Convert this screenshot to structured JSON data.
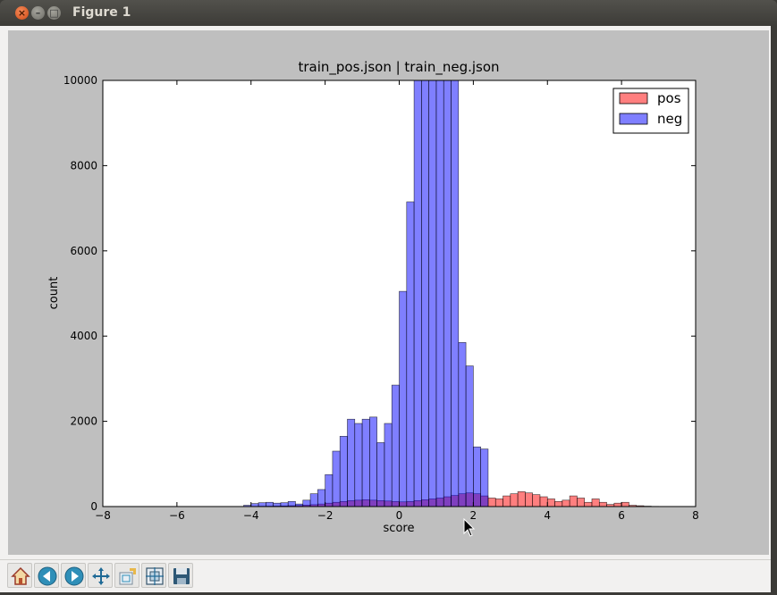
{
  "window": {
    "title": "Figure 1"
  },
  "toolbar": {
    "buttons": [
      {
        "icon": "home-icon"
      },
      {
        "icon": "back-icon"
      },
      {
        "icon": "forward-icon"
      },
      {
        "icon": "pan-icon"
      },
      {
        "icon": "zoom-icon"
      },
      {
        "icon": "subplots-icon"
      },
      {
        "icon": "save-icon"
      }
    ]
  },
  "chart_data": {
    "type": "bar",
    "title": "train_pos.json | train_neg.json",
    "xlabel": "score",
    "ylabel": "count",
    "xlim": [
      -8,
      8
    ],
    "ylim": [
      0,
      10000
    ],
    "xticks": [
      "−8",
      "−6",
      "−4",
      "−2",
      "0",
      "2",
      "4",
      "6",
      "8"
    ],
    "yticks": [
      "0",
      "2000",
      "4000",
      "6000",
      "8000",
      "10000"
    ],
    "legend_position": "top-right",
    "bin_width": 0.2,
    "series": [
      {
        "name": "pos",
        "color": "#ff0000",
        "bins_start": [
          -7.0,
          -6.8,
          -6.6,
          -6.4,
          -6.2,
          -6.0,
          -5.8,
          -5.6,
          -5.4,
          -5.2,
          -5.0,
          -4.8,
          -4.6,
          -4.4,
          -4.2,
          -4.0,
          -3.8,
          -3.6,
          -3.4,
          -3.2,
          -3.0,
          -2.8,
          -2.6,
          -2.4,
          -2.2,
          -2.0,
          -1.8,
          -1.6,
          -1.4,
          -1.2,
          -1.0,
          -0.8,
          -0.6,
          -0.4,
          -0.2,
          0.0,
          0.2,
          0.4,
          0.6,
          0.8,
          1.0,
          1.2,
          1.4,
          1.6,
          1.8,
          2.0,
          2.2,
          2.4,
          2.6,
          2.8,
          3.0,
          3.2,
          3.4,
          3.6,
          3.8,
          4.0,
          4.2,
          4.4,
          4.6,
          4.8,
          5.0,
          5.2,
          5.4,
          5.6,
          5.8,
          6.0,
          6.2,
          6.4,
          6.6,
          6.8
        ],
        "values": [
          0,
          0,
          0,
          0,
          0,
          0,
          0,
          0,
          0,
          0,
          0,
          0,
          0,
          0,
          0,
          5,
          8,
          10,
          12,
          15,
          20,
          25,
          35,
          45,
          60,
          80,
          100,
          120,
          140,
          150,
          160,
          150,
          140,
          130,
          120,
          110,
          120,
          140,
          160,
          180,
          200,
          230,
          260,
          300,
          320,
          300,
          250,
          200,
          180,
          250,
          300,
          350,
          320,
          280,
          230,
          180,
          120,
          150,
          250,
          200,
          100,
          180,
          100,
          50,
          80,
          100,
          30,
          20,
          10,
          5
        ]
      },
      {
        "name": "neg",
        "color": "#0000ff",
        "bins_start": [
          -4.2,
          -4.0,
          -3.8,
          -3.6,
          -3.4,
          -3.2,
          -3.0,
          -2.8,
          -2.6,
          -2.4,
          -2.2,
          -2.0,
          -1.8,
          -1.6,
          -1.4,
          -1.2,
          -1.0,
          -0.8,
          -0.6,
          -0.4,
          -0.2,
          0.0,
          0.2,
          0.4,
          0.6,
          0.8,
          1.0,
          1.2,
          1.4,
          1.6,
          1.8,
          2.0,
          2.2
        ],
        "values": [
          30,
          70,
          90,
          100,
          80,
          90,
          120,
          60,
          150,
          300,
          400,
          750,
          1300,
          1650,
          2050,
          1950,
          2050,
          2100,
          1500,
          1950,
          2850,
          5050,
          7150,
          10000,
          10000,
          10000,
          10000,
          10000,
          10000,
          3850,
          3300,
          1400,
          1350
        ]
      }
    ],
    "bar_alpha": 0.5
  }
}
